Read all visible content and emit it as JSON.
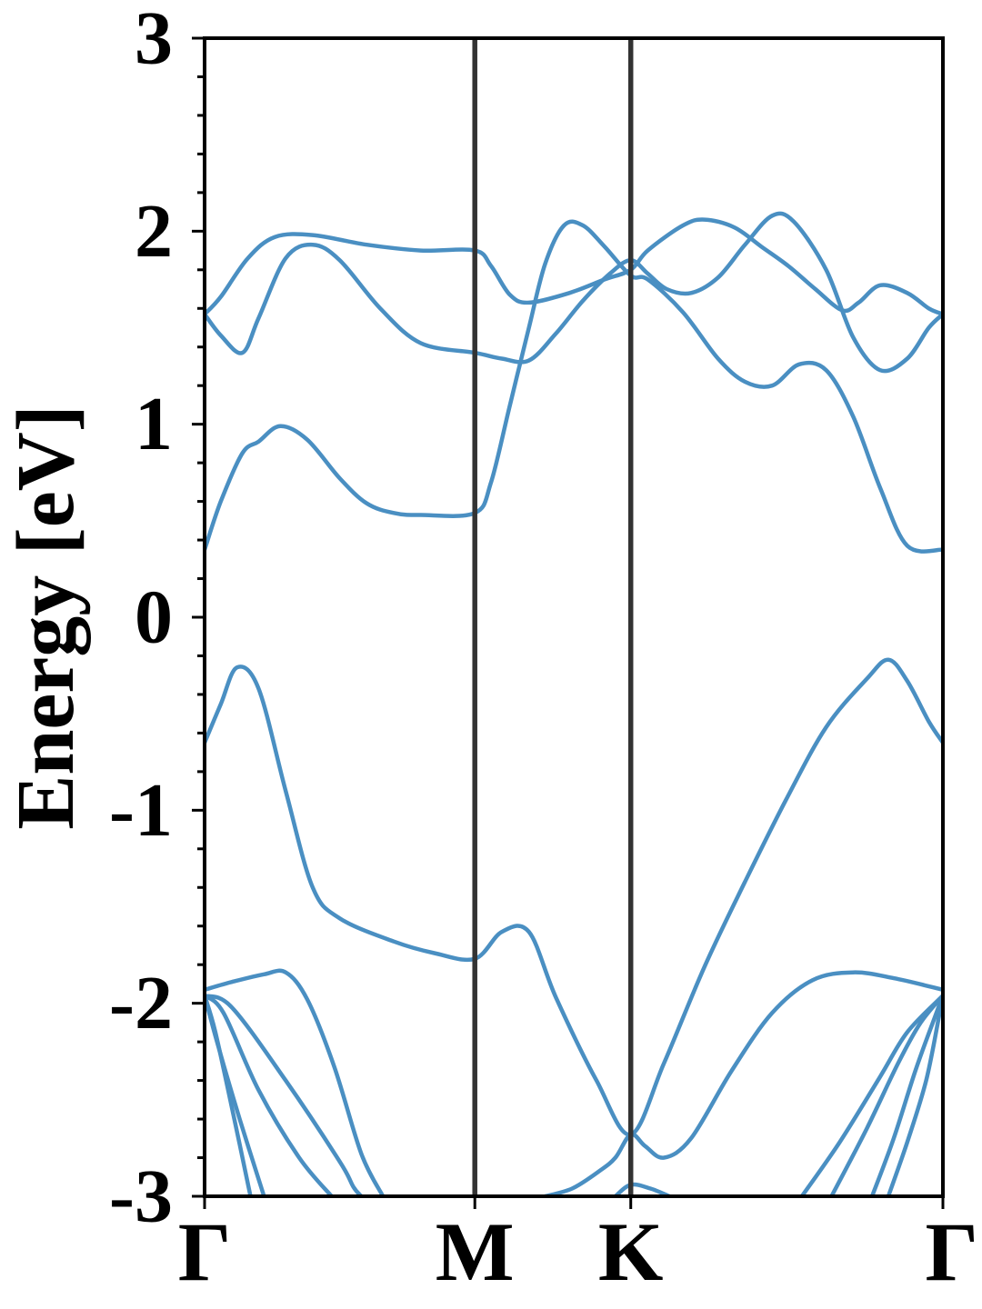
{
  "chart_data": {
    "type": "line",
    "title": "",
    "xlabel": "",
    "ylabel": "Energy [eV]",
    "ylim": [
      -3,
      3
    ],
    "xlim": [
      0,
      2.732
    ],
    "yticks": [
      -3,
      -2,
      -1,
      0,
      1,
      2,
      3
    ],
    "ytick_labels": [
      "-3",
      "-2",
      "-1",
      "0",
      "1",
      "2",
      "3"
    ],
    "kpoints": [
      {
        "label": "Γ",
        "x": 0
      },
      {
        "label": "M",
        "x": 1.0
      },
      {
        "label": "K",
        "x": 1.577
      },
      {
        "label": "Γ",
        "x": 2.732
      }
    ],
    "grid": false,
    "line_color": "#4a8fc2",
    "kline_color": "#333333",
    "series": [
      {
        "values": [
          [
            0,
            1.57
          ],
          [
            0.06,
            1.66
          ],
          [
            0.16,
            1.86
          ],
          [
            0.26,
            1.97
          ],
          [
            0.4,
            1.98
          ],
          [
            0.6,
            1.93
          ],
          [
            0.8,
            1.9
          ],
          [
            1.0,
            1.9
          ],
          [
            1.06,
            1.82
          ],
          [
            1.13,
            1.67
          ],
          [
            1.2,
            1.63
          ],
          [
            1.35,
            1.68
          ],
          [
            1.48,
            1.75
          ],
          [
            1.577,
            1.8
          ],
          [
            1.64,
            1.9
          ],
          [
            1.77,
            2.03
          ],
          [
            1.85,
            2.06
          ],
          [
            1.96,
            2.02
          ],
          [
            2.06,
            1.92
          ],
          [
            2.16,
            1.82
          ],
          [
            2.26,
            1.7
          ],
          [
            2.36,
            1.59
          ],
          [
            2.42,
            1.63
          ],
          [
            2.5,
            1.72
          ],
          [
            2.6,
            1.68
          ],
          [
            2.68,
            1.6
          ],
          [
            2.732,
            1.57
          ]
        ]
      },
      {
        "values": [
          [
            0,
            1.57
          ],
          [
            0.06,
            1.46
          ],
          [
            0.14,
            1.37
          ],
          [
            0.2,
            1.55
          ],
          [
            0.3,
            1.86
          ],
          [
            0.4,
            1.93
          ],
          [
            0.5,
            1.85
          ],
          [
            0.65,
            1.6
          ],
          [
            0.8,
            1.42
          ],
          [
            1.0,
            1.37
          ],
          [
            1.1,
            1.34
          ],
          [
            1.2,
            1.33
          ],
          [
            1.3,
            1.47
          ],
          [
            1.4,
            1.64
          ],
          [
            1.5,
            1.78
          ],
          [
            1.577,
            1.85
          ],
          [
            1.64,
            1.78
          ],
          [
            1.71,
            1.7
          ],
          [
            1.8,
            1.68
          ],
          [
            1.9,
            1.76
          ],
          [
            2.0,
            1.93
          ],
          [
            2.1,
            2.08
          ],
          [
            2.18,
            2.05
          ],
          [
            2.3,
            1.8
          ],
          [
            2.4,
            1.45
          ],
          [
            2.5,
            1.28
          ],
          [
            2.6,
            1.34
          ],
          [
            2.68,
            1.5
          ],
          [
            2.732,
            1.57
          ]
        ]
      },
      {
        "values": [
          [
            0,
            0.35
          ],
          [
            0.06,
            0.6
          ],
          [
            0.14,
            0.85
          ],
          [
            0.2,
            0.91
          ],
          [
            0.28,
            0.99
          ],
          [
            0.38,
            0.92
          ],
          [
            0.5,
            0.72
          ],
          [
            0.6,
            0.59
          ],
          [
            0.7,
            0.54
          ],
          [
            0.8,
            0.53
          ],
          [
            1.0,
            0.54
          ],
          [
            1.06,
            0.7
          ],
          [
            1.13,
            1.1
          ],
          [
            1.2,
            1.5
          ],
          [
            1.26,
            1.83
          ],
          [
            1.33,
            2.03
          ],
          [
            1.4,
            2.03
          ],
          [
            1.48,
            1.92
          ],
          [
            1.577,
            1.77
          ],
          [
            1.64,
            1.75
          ],
          [
            1.77,
            1.58
          ],
          [
            1.9,
            1.34
          ],
          [
            2.0,
            1.22
          ],
          [
            2.1,
            1.2
          ],
          [
            2.2,
            1.31
          ],
          [
            2.3,
            1.28
          ],
          [
            2.4,
            1.04
          ],
          [
            2.5,
            0.67
          ],
          [
            2.6,
            0.37
          ],
          [
            2.732,
            0.35
          ]
        ]
      },
      {
        "values": [
          [
            0,
            -0.65
          ],
          [
            0.06,
            -0.45
          ],
          [
            0.12,
            -0.26
          ],
          [
            0.2,
            -0.37
          ],
          [
            0.3,
            -0.9
          ],
          [
            0.4,
            -1.4
          ],
          [
            0.5,
            -1.56
          ],
          [
            0.7,
            -1.68
          ],
          [
            0.85,
            -1.74
          ],
          [
            1.0,
            -1.77
          ],
          [
            1.1,
            -1.63
          ],
          [
            1.2,
            -1.63
          ],
          [
            1.3,
            -1.97
          ],
          [
            1.45,
            -2.4
          ],
          [
            1.577,
            -2.68
          ],
          [
            1.7,
            -2.31
          ],
          [
            1.85,
            -1.81
          ],
          [
            2.0,
            -1.37
          ],
          [
            2.15,
            -0.95
          ],
          [
            2.3,
            -0.57
          ],
          [
            2.45,
            -0.32
          ],
          [
            2.53,
            -0.22
          ],
          [
            2.6,
            -0.33
          ],
          [
            2.68,
            -0.54
          ],
          [
            2.732,
            -0.65
          ]
        ]
      },
      {
        "values": [
          [
            0,
            -1.93
          ],
          [
            0.1,
            -1.89
          ],
          [
            0.22,
            -1.85
          ],
          [
            0.3,
            -1.84
          ],
          [
            0.38,
            -1.98
          ],
          [
            0.48,
            -2.33
          ],
          [
            0.58,
            -2.78
          ],
          [
            0.66,
            -3.0
          ]
        ]
      },
      {
        "values": [
          [
            1.26,
            -3.0
          ],
          [
            1.36,
            -2.96
          ],
          [
            1.46,
            -2.87
          ],
          [
            1.52,
            -2.8
          ],
          [
            1.577,
            -2.68
          ],
          [
            1.63,
            -2.74
          ],
          [
            1.7,
            -2.8
          ],
          [
            1.8,
            -2.7
          ],
          [
            1.95,
            -2.35
          ],
          [
            2.1,
            -2.05
          ],
          [
            2.25,
            -1.88
          ],
          [
            2.4,
            -1.84
          ],
          [
            2.55,
            -1.87
          ],
          [
            2.732,
            -1.93
          ]
        ]
      },
      {
        "values": [
          [
            0,
            -1.96
          ],
          [
            0.1,
            -2.02
          ],
          [
            0.3,
            -2.4
          ],
          [
            0.5,
            -2.82
          ],
          [
            0.55,
            -2.95
          ],
          [
            0.58,
            -3.0
          ]
        ]
      },
      {
        "values": [
          [
            0,
            -1.96
          ],
          [
            0.07,
            -2.05
          ],
          [
            0.2,
            -2.45
          ],
          [
            0.35,
            -2.8
          ],
          [
            0.47,
            -3.0
          ]
        ]
      },
      {
        "values": [
          [
            0,
            -1.96
          ],
          [
            0.05,
            -2.22
          ],
          [
            0.13,
            -2.6
          ],
          [
            0.22,
            -3.0
          ]
        ]
      },
      {
        "values": [
          [
            0,
            -1.96
          ],
          [
            0.04,
            -2.15
          ],
          [
            0.11,
            -2.6
          ],
          [
            0.17,
            -3.0
          ]
        ]
      },
      {
        "values": [
          [
            1.52,
            -3.0
          ],
          [
            1.577,
            -2.94
          ],
          [
            1.65,
            -2.96
          ],
          [
            1.72,
            -3.0
          ]
        ]
      },
      {
        "values": [
          [
            2.21,
            -3.0
          ],
          [
            2.35,
            -2.72
          ],
          [
            2.5,
            -2.38
          ],
          [
            2.6,
            -2.15
          ],
          [
            2.732,
            -1.96
          ]
        ]
      },
      {
        "values": [
          [
            2.32,
            -3.0
          ],
          [
            2.45,
            -2.65
          ],
          [
            2.57,
            -2.3
          ],
          [
            2.65,
            -2.1
          ],
          [
            2.732,
            -1.96
          ]
        ]
      },
      {
        "values": [
          [
            2.47,
            -3.0
          ],
          [
            2.55,
            -2.7
          ],
          [
            2.63,
            -2.35
          ],
          [
            2.7,
            -2.08
          ],
          [
            2.732,
            -1.96
          ]
        ]
      },
      {
        "values": [
          [
            2.53,
            -3.0
          ],
          [
            2.6,
            -2.72
          ],
          [
            2.67,
            -2.4
          ],
          [
            2.72,
            -2.05
          ],
          [
            2.732,
            -1.96
          ]
        ]
      }
    ]
  }
}
